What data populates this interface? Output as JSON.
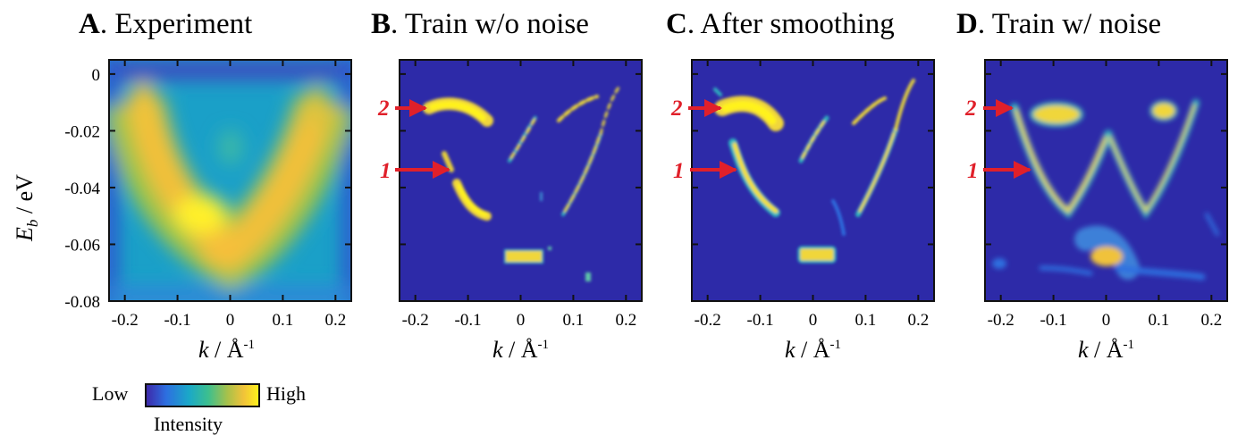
{
  "colors": {
    "background_low": "#2d2aa8",
    "colormap": [
      "#3e26a8",
      "#2d6fe0",
      "#1aa8c8",
      "#3cbf8f",
      "#a8c14a",
      "#f0c23a",
      "#fff21a"
    ],
    "arrow": "#e0202a"
  },
  "colorbar": {
    "low_label": "Low",
    "high_label": "High",
    "title": "Intensity"
  },
  "chart_data": [
    {
      "type": "heatmap",
      "panel_letter": "A",
      "title": ". Experiment",
      "xlabel_k": "k",
      "xlabel_unit": " / Å",
      "xlabel_sup": "-1",
      "ylabel_E": "E",
      "ylabel_sub": "b",
      "ylabel_unit": " / eV",
      "xlim": [
        -0.23,
        0.23
      ],
      "ylim": [
        -0.08,
        0.005
      ],
      "xticks": [
        "-0.2",
        "-0.1",
        "0",
        "0.1",
        "0.2"
      ],
      "xtick_values": [
        -0.2,
        -0.1,
        0,
        0.1,
        0.2
      ],
      "yticks": [
        "0",
        "-0.02",
        "-0.04",
        "-0.06",
        "-0.08"
      ],
      "ytick_values": [
        0,
        -0.02,
        -0.04,
        -0.06,
        -0.08
      ]
    },
    {
      "type": "heatmap",
      "panel_letter": "B",
      "title": ". Train w/o noise",
      "xlim": [
        -0.23,
        0.23
      ],
      "ylim": [
        -0.08,
        0.005
      ],
      "xticks": [
        "-0.2",
        "-0.1",
        "0",
        "0.1",
        "0.2"
      ],
      "xtick_values": [
        -0.2,
        -0.1,
        0,
        0.1,
        0.2
      ],
      "annotations": [
        {
          "label": "2",
          "k": -0.17,
          "E": -0.012
        },
        {
          "label": "1",
          "k": -0.13,
          "E": -0.035
        }
      ]
    },
    {
      "type": "heatmap",
      "panel_letter": "C",
      "title": ". After smoothing",
      "xlim": [
        -0.23,
        0.23
      ],
      "ylim": [
        -0.08,
        0.005
      ],
      "xticks": [
        "-0.2",
        "-0.1",
        "0",
        "0.1",
        "0.2"
      ],
      "xtick_values": [
        -0.2,
        -0.1,
        0,
        0.1,
        0.2
      ],
      "annotations": [
        {
          "label": "2",
          "k": -0.17,
          "E": -0.012
        },
        {
          "label": "1",
          "k": -0.13,
          "E": -0.035
        }
      ]
    },
    {
      "type": "heatmap",
      "panel_letter": "D",
      "title": ". Train w/ noise",
      "xlim": [
        -0.23,
        0.23
      ],
      "ylim": [
        -0.08,
        0.005
      ],
      "xticks": [
        "-0.2",
        "-0.1",
        "0",
        "0.1",
        "0.2"
      ],
      "xtick_values": [
        -0.2,
        -0.1,
        0,
        0.1,
        0.2
      ],
      "annotations": [
        {
          "label": "2",
          "k": -0.19,
          "E": -0.012
        },
        {
          "label": "1",
          "k": -0.15,
          "E": -0.035
        }
      ]
    }
  ]
}
